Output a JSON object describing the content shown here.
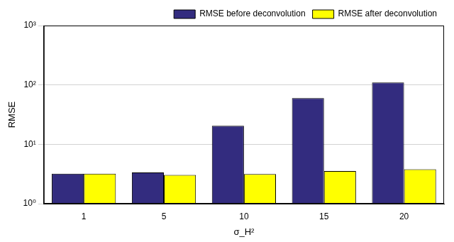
{
  "chart_data": {
    "type": "bar",
    "categories": [
      "1",
      "5",
      "10",
      "15",
      "20"
    ],
    "series": [
      {
        "name": "RMSE before deconvolution",
        "color": "#332c7f",
        "values": [
          3.2,
          3.35,
          20.5,
          60,
          110
        ]
      },
      {
        "name": "RMSE after deconvolution",
        "color": "#ffff00",
        "values": [
          3.2,
          3.05,
          3.15,
          3.55,
          3.8
        ]
      }
    ],
    "x_label": "σ_H²",
    "y_label": "RMSE",
    "log": "y",
    "ylim": [
      1,
      1000
    ],
    "yticks": [
      {
        "value": 1,
        "label": "10⁰"
      },
      {
        "value": 10,
        "label": "10¹"
      },
      {
        "value": 100,
        "label": "10²"
      },
      {
        "value": 1000,
        "label": "10³"
      }
    ],
    "grid": true,
    "legend": "top-right"
  }
}
